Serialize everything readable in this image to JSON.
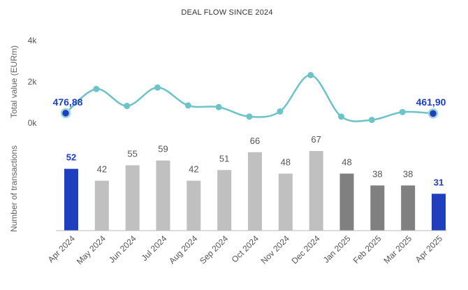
{
  "chart_data": {
    "title": "DEAL FLOW SINCE 2024",
    "categories": [
      "Apr 2024",
      "May 2024",
      "Jun 2024",
      "Jul 2024",
      "Aug 2024",
      "Sep 2024",
      "Oct 2024",
      "Nov 2024",
      "Dec 2024",
      "Jan 2025",
      "Feb 2025",
      "Mar 2025",
      "Apr 2025"
    ],
    "line": {
      "type": "line",
      "ylabel": "Total value (EURm)",
      "ylim": [
        0,
        4000
      ],
      "yticks": [
        "0k",
        "2k",
        "4k"
      ],
      "values": [
        476.88,
        1650,
        830,
        1720,
        850,
        770,
        310,
        560,
        2320,
        310,
        150,
        530,
        461.9
      ],
      "labels": [
        "476,88",
        "461,90"
      ],
      "color": "#6cc3c8",
      "marker_color": "#1f3fbf"
    },
    "bars": {
      "type": "bar",
      "ylabel": "Number of transactions",
      "ylim": [
        0,
        90
      ],
      "values": [
        52,
        42,
        55,
        59,
        42,
        51,
        66,
        48,
        67,
        48,
        38,
        38,
        31
      ],
      "colors": [
        "#1f3fbf",
        "#c0c0c0",
        "#c0c0c0",
        "#c0c0c0",
        "#c0c0c0",
        "#c0c0c0",
        "#c0c0c0",
        "#c0c0c0",
        "#c0c0c0",
        "#808080",
        "#808080",
        "#808080",
        "#1f3fbf"
      ]
    }
  }
}
